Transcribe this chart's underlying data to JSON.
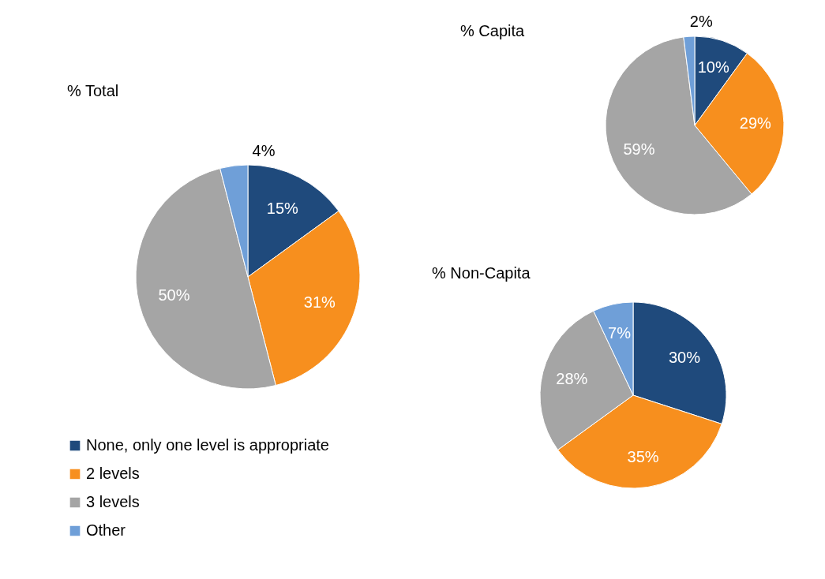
{
  "chart_data": [
    {
      "type": "pie",
      "title": "% Total",
      "categories": [
        "None, only one level is appropriate",
        "2 levels",
        "3 levels",
        "Other"
      ],
      "values": [
        15,
        31,
        50,
        4
      ],
      "colors": [
        "#1f4a7c",
        "#f78f1e",
        "#a5a5a5",
        "#6f9fd8"
      ],
      "value_labels": [
        "15%",
        "31%",
        "50%",
        "4%"
      ],
      "legend": "bottom"
    },
    {
      "type": "pie",
      "title": "% Capita",
      "values": [
        10,
        29,
        59,
        2
      ],
      "colors": [
        "#1f4a7c",
        "#f78f1e",
        "#a5a5a5",
        "#6f9fd8"
      ],
      "value_labels": [
        "10%",
        "29%",
        "59%",
        "2%"
      ]
    },
    {
      "type": "pie",
      "title": "% Non-Capita",
      "values": [
        30,
        35,
        28,
        7
      ],
      "colors": [
        "#1f4a7c",
        "#f78f1e",
        "#a5a5a5",
        "#6f9fd8"
      ],
      "value_labels": [
        "30%",
        "35%",
        "28%",
        "7%"
      ]
    }
  ]
}
